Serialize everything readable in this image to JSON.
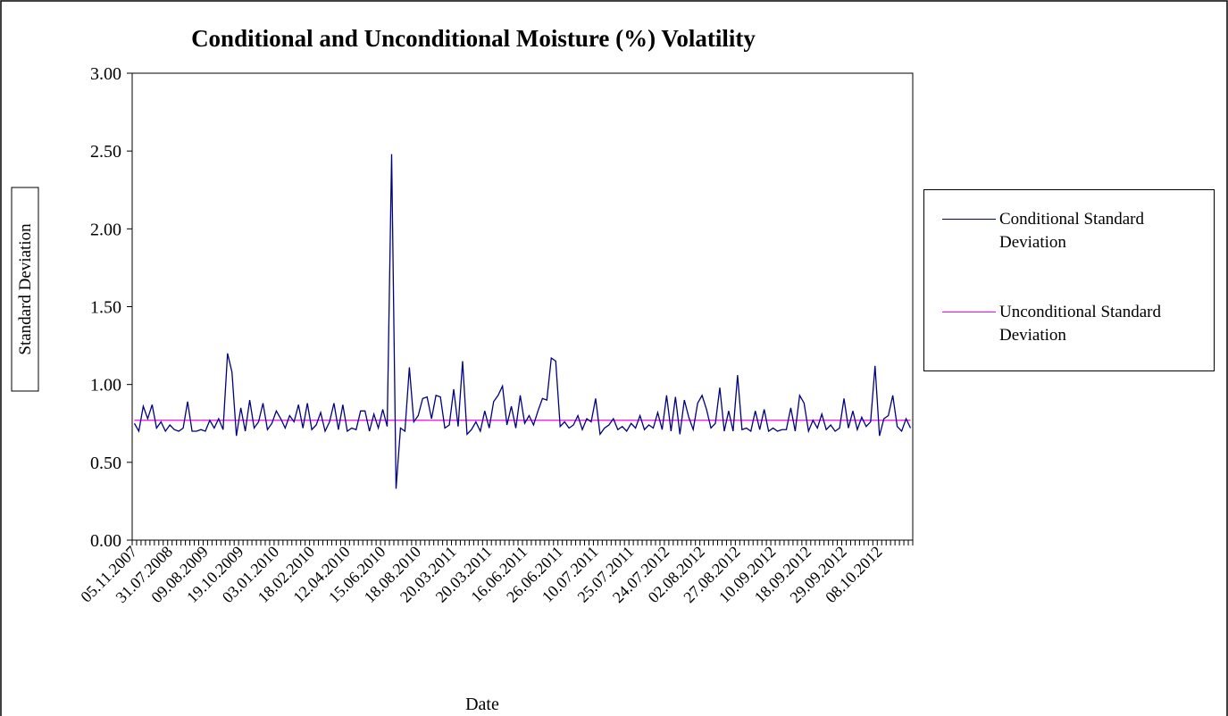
{
  "chart_data": {
    "type": "line",
    "title": "Conditional and Unconditional Moisture (%) Volatility",
    "x_label": "Date",
    "y_label": "Standard Deviation",
    "categories": [
      "05.11.2007",
      null,
      null,
      null,
      null,
      null,
      null,
      null,
      "31.07.2008",
      null,
      null,
      null,
      null,
      null,
      null,
      null,
      "09.08.2009",
      null,
      null,
      null,
      null,
      null,
      null,
      null,
      "19.10.2009",
      null,
      null,
      null,
      null,
      null,
      null,
      null,
      "03.01.2010",
      null,
      null,
      null,
      null,
      null,
      null,
      null,
      "18.02.2010",
      null,
      null,
      null,
      null,
      null,
      null,
      null,
      "12.04.2010",
      null,
      null,
      null,
      null,
      null,
      null,
      null,
      "15.06.2010",
      null,
      null,
      null,
      null,
      null,
      null,
      null,
      "18.08.2010",
      null,
      null,
      null,
      null,
      null,
      null,
      null,
      "20.03.2011",
      null,
      null,
      null,
      null,
      null,
      null,
      null,
      "20.03.2011",
      null,
      null,
      null,
      null,
      null,
      null,
      null,
      "16.06.2011",
      null,
      null,
      null,
      null,
      null,
      null,
      null,
      "26.06.2011",
      null,
      null,
      null,
      null,
      null,
      null,
      null,
      "10.07.2011",
      null,
      null,
      null,
      null,
      null,
      null,
      null,
      "25.07.2011",
      null,
      null,
      null,
      null,
      null,
      null,
      null,
      "24.07.2012",
      null,
      null,
      null,
      null,
      null,
      null,
      null,
      "02.08.2012",
      null,
      null,
      null,
      null,
      null,
      null,
      null,
      "27.08.2012",
      null,
      null,
      null,
      null,
      null,
      null,
      null,
      "10.09.2012",
      null,
      null,
      null,
      null,
      null,
      null,
      null,
      "18.09.2012",
      null,
      null,
      null,
      null,
      null,
      null,
      null,
      "29.09.2012",
      null,
      null,
      null,
      null,
      null,
      null,
      null,
      "08.10.2012",
      null,
      null,
      null,
      null,
      null,
      null,
      null
    ],
    "series": [
      {
        "name": "Conditional Standard Deviation",
        "color": "#000080",
        "values": [
          0.75,
          0.7,
          0.86,
          0.78,
          0.87,
          0.72,
          0.76,
          0.7,
          0.74,
          0.71,
          0.7,
          0.72,
          0.89,
          0.7,
          0.7,
          0.71,
          0.7,
          0.77,
          0.72,
          0.78,
          0.71,
          1.2,
          1.08,
          0.67,
          0.85,
          0.7,
          0.9,
          0.72,
          0.76,
          0.88,
          0.71,
          0.75,
          0.83,
          0.78,
          0.72,
          0.8,
          0.76,
          0.87,
          0.72,
          0.88,
          0.71,
          0.74,
          0.82,
          0.7,
          0.76,
          0.88,
          0.71,
          0.87,
          0.7,
          0.72,
          0.71,
          0.83,
          0.83,
          0.7,
          0.81,
          0.72,
          0.84,
          0.73,
          2.48,
          0.33,
          0.72,
          0.7,
          1.11,
          0.76,
          0.8,
          0.91,
          0.92,
          0.78,
          0.93,
          0.92,
          0.72,
          0.74,
          0.97,
          0.73,
          1.15,
          0.68,
          0.71,
          0.76,
          0.7,
          0.83,
          0.72,
          0.89,
          0.93,
          0.99,
          0.74,
          0.86,
          0.72,
          0.93,
          0.75,
          0.8,
          0.74,
          0.83,
          0.91,
          0.9,
          1.17,
          1.15,
          0.73,
          0.76,
          0.72,
          0.74,
          0.8,
          0.71,
          0.78,
          0.76,
          0.91,
          0.68,
          0.72,
          0.74,
          0.78,
          0.71,
          0.73,
          0.7,
          0.75,
          0.72,
          0.8,
          0.71,
          0.74,
          0.72,
          0.82,
          0.71,
          0.93,
          0.7,
          0.92,
          0.68,
          0.9,
          0.79,
          0.71,
          0.88,
          0.93,
          0.84,
          0.72,
          0.75,
          0.98,
          0.7,
          0.83,
          0.7,
          1.06,
          0.71,
          0.72,
          0.7,
          0.83,
          0.71,
          0.84,
          0.7,
          0.72,
          0.7,
          0.71,
          0.71,
          0.85,
          0.7,
          0.93,
          0.88,
          0.7,
          0.77,
          0.72,
          0.81,
          0.71,
          0.74,
          0.7,
          0.72,
          0.91,
          0.72,
          0.83,
          0.71,
          0.79,
          0.73,
          0.76,
          1.12,
          0.67,
          0.78,
          0.8,
          0.93,
          0.73,
          0.7,
          0.78,
          0.72
        ]
      },
      {
        "name": "Unconditional Standard Deviation",
        "color": "#ff00ff",
        "values": [
          0.77,
          0.77,
          0.77,
          0.77,
          0.77,
          0.77,
          0.77,
          0.77,
          0.77,
          0.77,
          0.77,
          0.77,
          0.77,
          0.77,
          0.77,
          0.77,
          0.77,
          0.77,
          0.77,
          0.77,
          0.77,
          0.77,
          0.77,
          0.77,
          0.77,
          0.77,
          0.77,
          0.77,
          0.77,
          0.77,
          0.77,
          0.77,
          0.77,
          0.77,
          0.77,
          0.77,
          0.77,
          0.77,
          0.77,
          0.77,
          0.77,
          0.77,
          0.77,
          0.77,
          0.77,
          0.77,
          0.77,
          0.77,
          0.77,
          0.77,
          0.77,
          0.77,
          0.77,
          0.77,
          0.77,
          0.77,
          0.77,
          0.77,
          0.77,
          0.77,
          0.77,
          0.77,
          0.77,
          0.77,
          0.77,
          0.77,
          0.77,
          0.77,
          0.77,
          0.77,
          0.77,
          0.77,
          0.77,
          0.77,
          0.77,
          0.77,
          0.77,
          0.77,
          0.77,
          0.77,
          0.77,
          0.77,
          0.77,
          0.77,
          0.77,
          0.77,
          0.77,
          0.77,
          0.77,
          0.77,
          0.77,
          0.77,
          0.77,
          0.77,
          0.77,
          0.77,
          0.77,
          0.77,
          0.77,
          0.77,
          0.77,
          0.77,
          0.77,
          0.77,
          0.77,
          0.77,
          0.77,
          0.77,
          0.77,
          0.77,
          0.77,
          0.77,
          0.77,
          0.77,
          0.77,
          0.77,
          0.77,
          0.77,
          0.77,
          0.77,
          0.77,
          0.77,
          0.77,
          0.77,
          0.77,
          0.77,
          0.77,
          0.77,
          0.77,
          0.77,
          0.77,
          0.77,
          0.77,
          0.77,
          0.77,
          0.77,
          0.77,
          0.77,
          0.77,
          0.77,
          0.77,
          0.77,
          0.77,
          0.77,
          0.77,
          0.77,
          0.77,
          0.77,
          0.77,
          0.77,
          0.77,
          0.77,
          0.77,
          0.77,
          0.77,
          0.77,
          0.77,
          0.77,
          0.77,
          0.77,
          0.77,
          0.77,
          0.77,
          0.77,
          0.77,
          0.77,
          0.77,
          0.77,
          0.77,
          0.77,
          0.77,
          0.77,
          0.77,
          0.77,
          0.77,
          0.77
        ]
      }
    ],
    "ylim": [
      0,
      3
    ],
    "yticks": [
      {
        "value": 0,
        "label": "0.00"
      },
      {
        "value": 0.5,
        "label": "0.50"
      },
      {
        "value": 1,
        "label": "1.00"
      },
      {
        "value": 1.5,
        "label": "1.50"
      },
      {
        "value": 2,
        "label": "2.00"
      },
      {
        "value": 2.5,
        "label": "2.50"
      },
      {
        "value": 3,
        "label": "3.00"
      }
    ],
    "grid": false,
    "legend": "right"
  }
}
